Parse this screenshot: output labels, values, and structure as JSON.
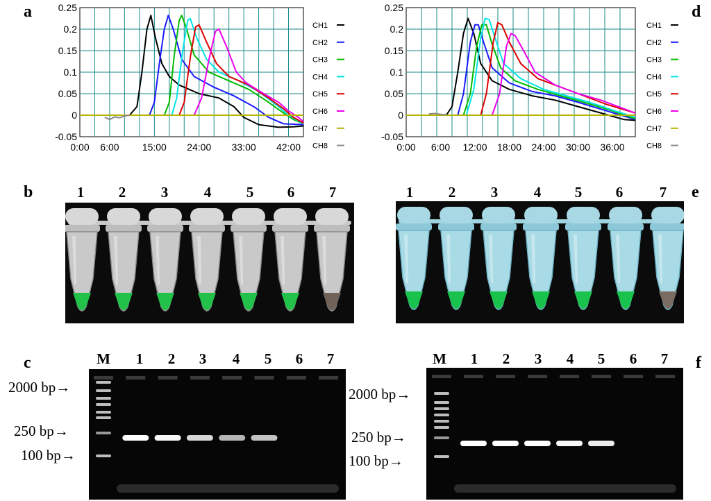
{
  "panels": {
    "a": "a",
    "b": "b",
    "c": "c",
    "d": "d",
    "e": "e",
    "f": "f"
  },
  "chart_data": [
    {
      "type": "line",
      "panel": "a",
      "x_tick_labels": [
        "0:00",
        "6:00",
        "15:00",
        "24:00",
        "33:00",
        "42:00"
      ],
      "x_tick_minutes": [
        0,
        6,
        15,
        24,
        33,
        42
      ],
      "xlim": [
        0,
        45
      ],
      "y_tick_labels": [
        "0.25",
        "0.2",
        "0.15",
        "0.1",
        "0.05",
        "0",
        "-0.05"
      ],
      "ylim": [
        -0.05,
        0.25
      ],
      "grid": true,
      "legend_position": "right",
      "series": [
        {
          "name": "CH1",
          "color": "#000000",
          "points": [
            [
              0,
              0
            ],
            [
              10,
              0
            ],
            [
              11.5,
              0.02
            ],
            [
              12.5,
              0.1
            ],
            [
              13.5,
              0.2
            ],
            [
              14.3,
              0.232
            ],
            [
              15.2,
              0.18
            ],
            [
              16.5,
              0.12
            ],
            [
              18,
              0.09
            ],
            [
              20,
              0.07
            ],
            [
              24,
              0.05
            ],
            [
              28,
              0.04
            ],
            [
              31,
              0.02
            ],
            [
              33,
              -0.005
            ],
            [
              36,
              -0.022
            ],
            [
              40,
              -0.028
            ],
            [
              43,
              -0.027
            ],
            [
              45,
              -0.025
            ]
          ]
        },
        {
          "name": "CH2",
          "color": "#1a1aff",
          "points": [
            [
              0,
              0
            ],
            [
              14,
              0
            ],
            [
              15,
              0.03
            ],
            [
              16,
              0.12
            ],
            [
              17,
              0.2
            ],
            [
              17.8,
              0.232
            ],
            [
              18.8,
              0.2
            ],
            [
              20.5,
              0.13
            ],
            [
              23,
              0.09
            ],
            [
              27,
              0.065
            ],
            [
              31,
              0.045
            ],
            [
              35,
              0.02
            ],
            [
              38,
              -0.005
            ],
            [
              41,
              -0.02
            ],
            [
              45,
              -0.022
            ]
          ]
        },
        {
          "name": "CH3",
          "color": "#00bb00",
          "points": [
            [
              0,
              0
            ],
            [
              17,
              0
            ],
            [
              18,
              0.03
            ],
            [
              19,
              0.14
            ],
            [
              20,
              0.22
            ],
            [
              20.5,
              0.232
            ],
            [
              21.5,
              0.2
            ],
            [
              23,
              0.14
            ],
            [
              26,
              0.1
            ],
            [
              30,
              0.08
            ],
            [
              34,
              0.06
            ],
            [
              38,
              0.03
            ],
            [
              41,
              0.005
            ],
            [
              43,
              -0.01
            ],
            [
              45,
              -0.02
            ]
          ]
        },
        {
          "name": "CH4",
          "color": "#00e5e5",
          "points": [
            [
              0,
              0
            ],
            [
              18.5,
              0
            ],
            [
              19.5,
              0.04
            ],
            [
              20.7,
              0.15
            ],
            [
              21.7,
              0.22
            ],
            [
              22.2,
              0.225
            ],
            [
              23.5,
              0.18
            ],
            [
              25.5,
              0.13
            ],
            [
              28,
              0.1
            ],
            [
              32,
              0.08
            ],
            [
              36,
              0.055
            ],
            [
              40,
              0.02
            ],
            [
              42,
              0
            ],
            [
              45,
              -0.02
            ]
          ]
        },
        {
          "name": "CH5",
          "color": "#dd0000",
          "points": [
            [
              0,
              0
            ],
            [
              20,
              0
            ],
            [
              21,
              0.03
            ],
            [
              22.3,
              0.14
            ],
            [
              23.3,
              0.205
            ],
            [
              24,
              0.21
            ],
            [
              25.5,
              0.17
            ],
            [
              27.5,
              0.12
            ],
            [
              30,
              0.09
            ],
            [
              34,
              0.07
            ],
            [
              38,
              0.04
            ],
            [
              41,
              0.015
            ],
            [
              43,
              -0.005
            ],
            [
              45,
              -0.018
            ]
          ]
        },
        {
          "name": "CH6",
          "color": "#ee00ee",
          "points": [
            [
              0,
              0
            ],
            [
              23,
              0
            ],
            [
              24.5,
              0.04
            ],
            [
              26,
              0.13
            ],
            [
              27.3,
              0.195
            ],
            [
              28,
              0.2
            ],
            [
              29.5,
              0.16
            ],
            [
              31.5,
              0.1
            ],
            [
              33.5,
              0.075
            ],
            [
              37,
              0.05
            ],
            [
              40,
              0.03
            ],
            [
              42,
              0.01
            ],
            [
              44,
              -0.005
            ],
            [
              45,
              -0.015
            ]
          ]
        },
        {
          "name": "CH7",
          "color": "#b5b500",
          "points": [
            [
              0,
              0
            ],
            [
              45,
              0
            ]
          ]
        },
        {
          "name": "CH8",
          "color": "#888888",
          "points": [
            [
              5,
              -0.005
            ],
            [
              6,
              -0.01
            ],
            [
              7,
              -0.004
            ],
            [
              8,
              -0.006
            ],
            [
              9,
              -0.002
            ],
            [
              10,
              0
            ]
          ]
        }
      ]
    },
    {
      "type": "line",
      "panel": "d",
      "x_tick_labels": [
        "0:00",
        "6:00",
        "12:00",
        "18:00",
        "24:00",
        "30:00",
        "36:00"
      ],
      "x_tick_minutes": [
        0,
        6,
        12,
        18,
        24,
        30,
        36
      ],
      "xlim": [
        0,
        40
      ],
      "y_tick_labels": [
        "0.25",
        "0.2",
        "0.15",
        "0.1",
        "0.05",
        "0",
        "-0.05"
      ],
      "ylim": [
        -0.05,
        0.25
      ],
      "grid": true,
      "legend_position": "right",
      "series": [
        {
          "name": "CH1",
          "color": "#000000",
          "points": [
            [
              0,
              0
            ],
            [
              7,
              0
            ],
            [
              8,
              0.02
            ],
            [
              9,
              0.1
            ],
            [
              10,
              0.19
            ],
            [
              10.8,
              0.225
            ],
            [
              11.8,
              0.19
            ],
            [
              13,
              0.12
            ],
            [
              15,
              0.08
            ],
            [
              18,
              0.06
            ],
            [
              22,
              0.045
            ],
            [
              26,
              0.035
            ],
            [
              30,
              0.02
            ],
            [
              34,
              0.005
            ],
            [
              38,
              -0.01
            ],
            [
              40,
              -0.012
            ]
          ]
        },
        {
          "name": "CH2",
          "color": "#1a1aff",
          "points": [
            [
              0,
              0
            ],
            [
              9,
              0
            ],
            [
              10,
              0.05
            ],
            [
              11.2,
              0.17
            ],
            [
              12,
              0.21
            ],
            [
              12.6,
              0.21
            ],
            [
              13.5,
              0.17
            ],
            [
              15,
              0.11
            ],
            [
              18,
              0.075
            ],
            [
              22,
              0.055
            ],
            [
              26,
              0.045
            ],
            [
              30,
              0.03
            ],
            [
              35,
              0.01
            ],
            [
              40,
              -0.01
            ]
          ]
        },
        {
          "name": "CH3",
          "color": "#00bb00",
          "points": [
            [
              0,
              0
            ],
            [
              10,
              0
            ],
            [
              11.2,
              0.05
            ],
            [
              12.3,
              0.16
            ],
            [
              13.2,
              0.21
            ],
            [
              14,
              0.21
            ],
            [
              15,
              0.165
            ],
            [
              16.5,
              0.11
            ],
            [
              19,
              0.08
            ],
            [
              23,
              0.06
            ],
            [
              27,
              0.045
            ],
            [
              31,
              0.03
            ],
            [
              36,
              0.01
            ],
            [
              40,
              -0.008
            ]
          ]
        },
        {
          "name": "CH4",
          "color": "#00e5e5",
          "points": [
            [
              0,
              0
            ],
            [
              10.5,
              0
            ],
            [
              11.8,
              0.06
            ],
            [
              13,
              0.18
            ],
            [
              13.8,
              0.225
            ],
            [
              14.5,
              0.222
            ],
            [
              15.5,
              0.18
            ],
            [
              17,
              0.12
            ],
            [
              20,
              0.085
            ],
            [
              24,
              0.06
            ],
            [
              28,
              0.045
            ],
            [
              32,
              0.03
            ],
            [
              36,
              0.012
            ],
            [
              40,
              -0.005
            ]
          ]
        },
        {
          "name": "CH5",
          "color": "#dd0000",
          "points": [
            [
              0,
              0
            ],
            [
              13,
              0
            ],
            [
              14,
              0.05
            ],
            [
              15.2,
              0.17
            ],
            [
              16,
              0.215
            ],
            [
              16.7,
              0.21
            ],
            [
              18,
              0.17
            ],
            [
              20,
              0.12
            ],
            [
              23,
              0.085
            ],
            [
              27,
              0.065
            ],
            [
              31,
              0.045
            ],
            [
              35,
              0.025
            ],
            [
              40,
              0.005
            ]
          ]
        },
        {
          "name": "CH6",
          "color": "#ee00ee",
          "points": [
            [
              0,
              0
            ],
            [
              15,
              0
            ],
            [
              16.3,
              0.05
            ],
            [
              17.5,
              0.16
            ],
            [
              18.3,
              0.19
            ],
            [
              19,
              0.185
            ],
            [
              20.5,
              0.15
            ],
            [
              22.5,
              0.1
            ],
            [
              26,
              0.07
            ],
            [
              30,
              0.05
            ],
            [
              34,
              0.035
            ],
            [
              38,
              0.015
            ],
            [
              40,
              0.005
            ]
          ]
        },
        {
          "name": "CH7",
          "color": "#b5b500",
          "points": [
            [
              0,
              0
            ],
            [
              40,
              0
            ]
          ]
        },
        {
          "name": "CH8",
          "color": "#888888",
          "points": [
            [
              4,
              0.003
            ],
            [
              5,
              0.004
            ],
            [
              6,
              0.002
            ],
            [
              7,
              0.001
            ]
          ]
        }
      ]
    }
  ],
  "tubes": {
    "left": [
      "1",
      "2",
      "3",
      "4",
      "5",
      "6",
      "7"
    ],
    "right": [
      "1",
      "2",
      "3",
      "4",
      "5",
      "6",
      "7"
    ]
  },
  "gels": {
    "left": {
      "lanes": [
        "M",
        "1",
        "2",
        "3",
        "4",
        "5",
        "6",
        "7"
      ],
      "markers": [
        "2000 bp",
        "250 bp",
        "100 bp"
      ],
      "band_intensity": [
        0,
        1.0,
        0.95,
        0.7,
        0.45,
        0.55,
        0,
        0
      ]
    },
    "right": {
      "lanes": [
        "M",
        "1",
        "2",
        "3",
        "4",
        "5",
        "6",
        "7"
      ],
      "markers": [
        "2000 bp",
        "250 bp",
        "100 bp"
      ],
      "band_intensity": [
        0,
        1.0,
        1.0,
        1.0,
        0.95,
        0.85,
        0,
        0
      ]
    }
  }
}
